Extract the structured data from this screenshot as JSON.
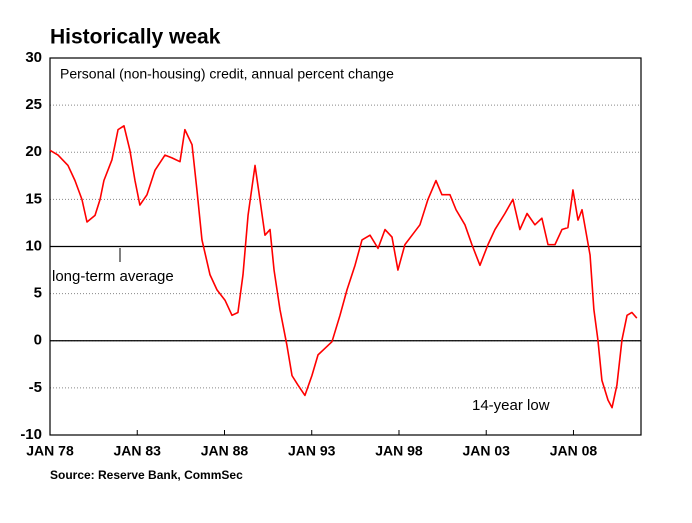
{
  "chart_data": {
    "type": "line",
    "title": "Historically weak",
    "subtitle": "Personal (non-housing) credit, annual percent change",
    "source": "Source: Reserve Bank, CommSec",
    "annotations": [
      "long-term average",
      "14-year low"
    ],
    "color": "#ff0000",
    "x": [
      1978.0,
      1978.46,
      1979.03,
      1979.43,
      1979.83,
      1980.12,
      1980.58,
      1980.87,
      1981.09,
      1981.55,
      1981.9,
      1982.24,
      1982.58,
      1982.87,
      1983.15,
      1983.56,
      1984.02,
      1984.59,
      1984.99,
      1985.45,
      1985.73,
      1986.14,
      1986.42,
      1986.71,
      1987.17,
      1987.57,
      1988.03,
      1988.43,
      1988.77,
      1989.06,
      1989.35,
      1989.75,
      1990.03,
      1990.32,
      1990.61,
      1990.84,
      1991.18,
      1991.58,
      1991.87,
      1992.21,
      1992.61,
      1993.01,
      1993.36,
      1993.76,
      1994.16,
      1994.62,
      1995.02,
      1995.48,
      1995.88,
      1996.34,
      1996.8,
      1997.2,
      1997.6,
      1997.94,
      1998.34,
      1998.75,
      1999.2,
      1999.66,
      2000.12,
      2000.46,
      2000.92,
      2001.27,
      2001.78,
      2002.18,
      2002.64,
      2003.1,
      2003.5,
      2004.07,
      2004.53,
      2004.93,
      2005.34,
      2005.79,
      2006.19,
      2006.54,
      2006.94,
      2007.34,
      2007.68,
      2007.97,
      2008.26,
      2008.49,
      2008.95,
      2009.17,
      2009.4,
      2009.63,
      2009.98,
      2010.21,
      2010.49,
      2010.78,
      2011.07,
      2011.35,
      2011.63
    ],
    "values": [
      20.2,
      19.7,
      18.6,
      17,
      15,
      12.6,
      13.3,
      15,
      17,
      19.2,
      22.4,
      22.8,
      20.2,
      17,
      14.4,
      15.5,
      18.1,
      19.7,
      19.4,
      19,
      22.4,
      20.8,
      16,
      10.7,
      7,
      5.4,
      4.3,
      2.7,
      3,
      7,
      13.3,
      18.6,
      15,
      11.2,
      11.8,
      7.5,
      3.3,
      -0.5,
      -3.7,
      -4.7,
      -5.8,
      -3.7,
      -1.5,
      -0.8,
      -0.1,
      2.7,
      5.4,
      8,
      10.7,
      11.2,
      9.8,
      11.8,
      11,
      7.5,
      10.2,
      11.2,
      12.3,
      15,
      17,
      15.5,
      15.5,
      13.9,
      12.3,
      10.2,
      8,
      10.2,
      11.8,
      13.5,
      15,
      11.8,
      13.5,
      12.3,
      13,
      10.2,
      10.2,
      11.8,
      12,
      16,
      12.8,
      13.9,
      9.1,
      3.3,
      0.1,
      -4.2,
      -6.3,
      -7.1,
      -4.7,
      0.1,
      2.7,
      3,
      2.4
    ],
    "xlim": [
      1978,
      2011.87
    ],
    "xticks": [
      {
        "value": 1978,
        "label": "JAN 78"
      },
      {
        "value": 1983,
        "label": "JAN 83"
      },
      {
        "value": 1988,
        "label": "JAN 88"
      },
      {
        "value": 1993,
        "label": "JAN 93"
      },
      {
        "value": 1998,
        "label": "JAN 98"
      },
      {
        "value": 2003,
        "label": "JAN 03"
      },
      {
        "value": 2008,
        "label": "JAN 08"
      }
    ],
    "ylim": [
      -10,
      30
    ],
    "yticks": [
      -10,
      -5,
      0,
      5,
      10,
      15,
      20,
      25,
      30
    ],
    "grid": true,
    "reference_lines": [
      0,
      10
    ]
  }
}
